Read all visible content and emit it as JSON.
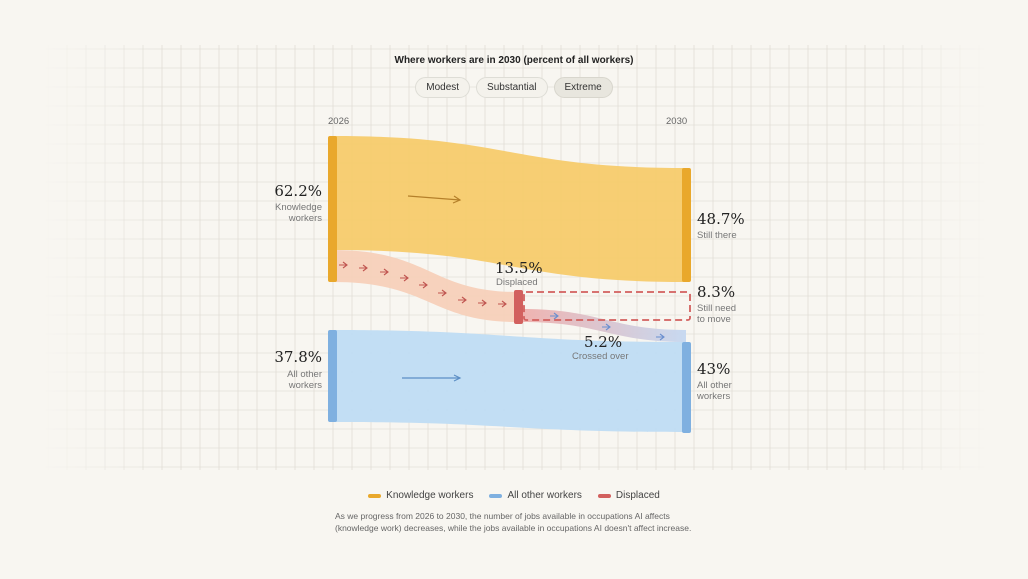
{
  "title": "Where workers are in 2030 (percent of all workers)",
  "scenarios": [
    {
      "label": "Modest",
      "active": false
    },
    {
      "label": "Substantial",
      "active": false
    },
    {
      "label": "Extreme",
      "active": true
    }
  ],
  "chart_data": {
    "type": "sankey",
    "title": "Where workers are in 2030 (percent of all workers)",
    "years": {
      "start": "2026",
      "end": "2030"
    },
    "nodes": {
      "knowledge_2026": {
        "value": "62.2%",
        "label": "Knowledge workers"
      },
      "other_2026": {
        "value": "37.8%",
        "label": "All other workers"
      },
      "displaced": {
        "value": "13.5%",
        "label": "Displaced"
      },
      "still_there": {
        "value": "48.7%",
        "label": "Still there"
      },
      "still_need_to_move": {
        "value": "8.3%",
        "label": "Still need to move"
      },
      "crossed_over": {
        "value": "5.2%",
        "label": "Crossed over"
      },
      "other_2030": {
        "value": "43%",
        "label": "All other workers"
      }
    },
    "flows": [
      {
        "from": "Knowledge workers 2026",
        "to": "Still there",
        "value": 48.7
      },
      {
        "from": "Knowledge workers 2026",
        "to": "Displaced",
        "value": 13.5
      },
      {
        "from": "Displaced",
        "to": "Still need to move",
        "value": 8.3
      },
      {
        "from": "Displaced",
        "to": "All other workers 2030",
        "value": 5.2
      },
      {
        "from": "All other workers 2026",
        "to": "All other workers 2030",
        "value": 37.8
      }
    ],
    "legend": [
      {
        "label": "Knowledge workers",
        "color": "#e9a82c"
      },
      {
        "label": "All other workers",
        "color": "#7fb0e0"
      },
      {
        "label": "Displaced",
        "color": "#d2605e"
      }
    ]
  },
  "caption": "As we progress from 2026 to 2030, the number of jobs available in occupations AI affects (knowledge work) decreases, while the jobs available in occupations AI doesn't affect increase.",
  "colors": {
    "knowledge": "#f6c96a",
    "knowledge_bar": "#e9a82c",
    "other": "#bcdcf3",
    "other_bar": "#7fb0e0",
    "displaced": "#d2605e",
    "displaced_flow": "#f6cdb7"
  }
}
